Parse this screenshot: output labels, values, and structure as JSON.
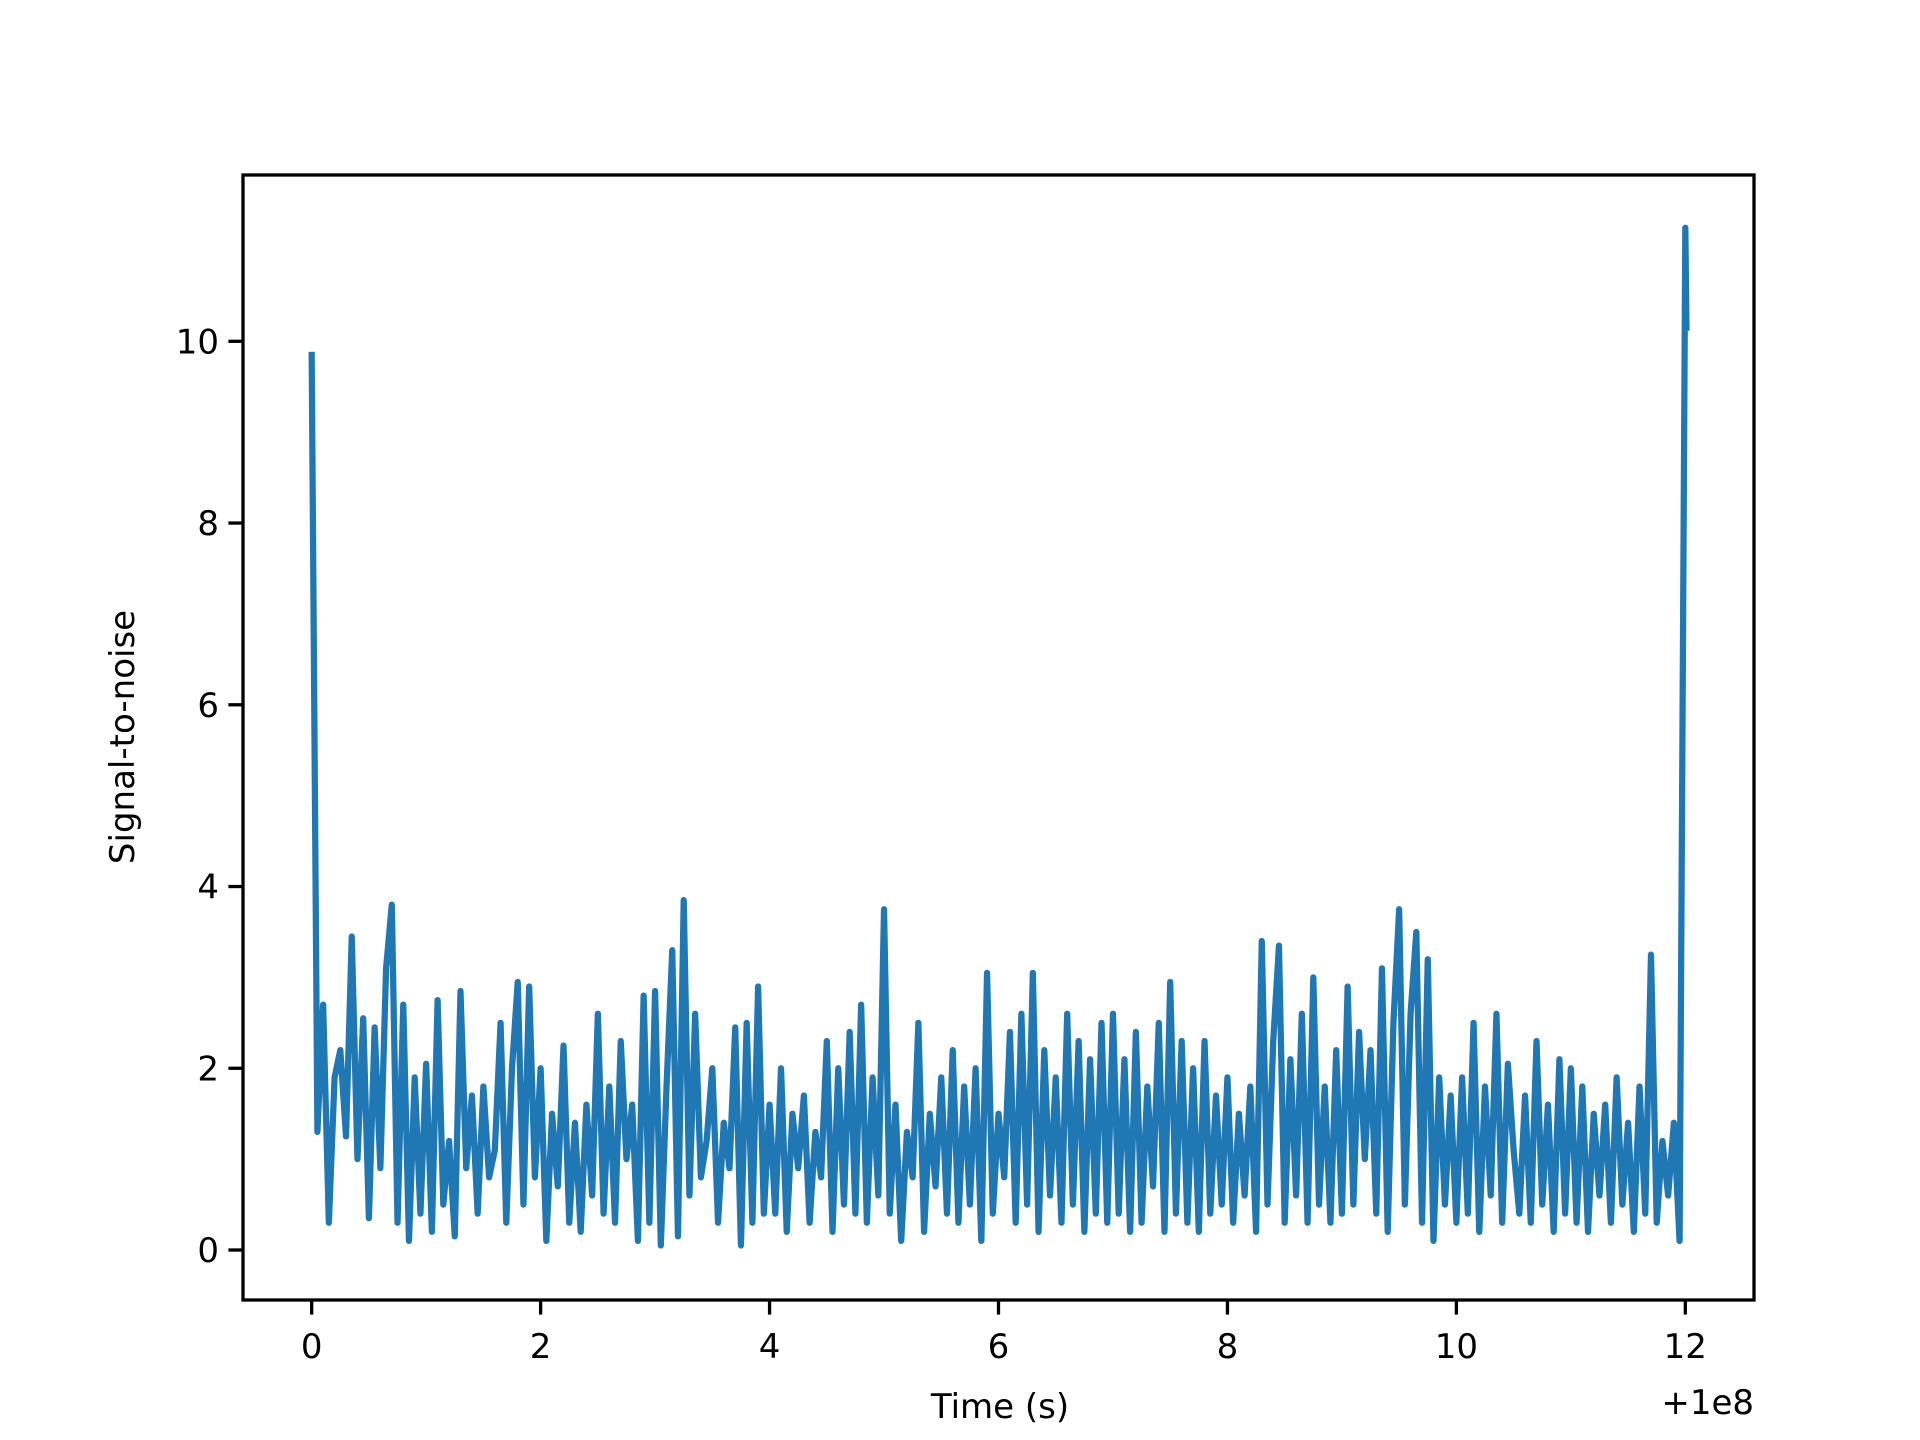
{
  "chart_data": {
    "type": "line",
    "x_label": "Time (s)",
    "y_label": "Signal-to-noise",
    "x_offset_label": "+1e8",
    "xlim": [
      -0.6,
      12.6
    ],
    "xticks": [
      0,
      2,
      4,
      6,
      8,
      10,
      12
    ],
    "ylim": [
      -0.55,
      11.83
    ],
    "yticks": [
      0,
      2,
      4,
      6,
      8,
      10
    ],
    "x": [
      0,
      0.05,
      0.1,
      0.15,
      0.2,
      0.25,
      0.3,
      0.35,
      0.4,
      0.45,
      0.5,
      0.55,
      0.6,
      0.65,
      0.7,
      0.75,
      0.8,
      0.85,
      0.9,
      0.95,
      1,
      1.05,
      1.1,
      1.15,
      1.2,
      1.25,
      1.3,
      1.35,
      1.4,
      1.45,
      1.5,
      1.55,
      1.6,
      1.65,
      1.7,
      1.75,
      1.8,
      1.85,
      1.9,
      1.95,
      2,
      2.05,
      2.1,
      2.15,
      2.2,
      2.25,
      2.3,
      2.35,
      2.4,
      2.45,
      2.5,
      2.55,
      2.6,
      2.65,
      2.7,
      2.75,
      2.8,
      2.85,
      2.9,
      2.95,
      3,
      3.05,
      3.1,
      3.15,
      3.2,
      3.25,
      3.3,
      3.35,
      3.4,
      3.45,
      3.5,
      3.55,
      3.6,
      3.65,
      3.7,
      3.75,
      3.8,
      3.85,
      3.9,
      3.95,
      4,
      4.05,
      4.1,
      4.15,
      4.2,
      4.25,
      4.3,
      4.35,
      4.4,
      4.45,
      4.5,
      4.55,
      4.6,
      4.65,
      4.7,
      4.75,
      4.8,
      4.85,
      4.9,
      4.95,
      5,
      5.05,
      5.1,
      5.15,
      5.2,
      5.25,
      5.3,
      5.35,
      5.4,
      5.45,
      5.5,
      5.55,
      5.6,
      5.65,
      5.7,
      5.75,
      5.8,
      5.85,
      5.9,
      5.95,
      6,
      6.05,
      6.1,
      6.15,
      6.2,
      6.25,
      6.3,
      6.35,
      6.4,
      6.45,
      6.5,
      6.55,
      6.6,
      6.65,
      6.7,
      6.75,
      6.8,
      6.85,
      6.9,
      6.95,
      7,
      7.05,
      7.1,
      7.15,
      7.2,
      7.25,
      7.3,
      7.35,
      7.4,
      7.45,
      7.5,
      7.55,
      7.6,
      7.65,
      7.7,
      7.75,
      7.8,
      7.85,
      7.9,
      7.95,
      8,
      8.05,
      8.1,
      8.15,
      8.2,
      8.25,
      8.3,
      8.35,
      8.4,
      8.45,
      8.5,
      8.55,
      8.6,
      8.65,
      8.7,
      8.75,
      8.8,
      8.85,
      8.9,
      8.95,
      9,
      9.05,
      9.1,
      9.15,
      9.2,
      9.25,
      9.3,
      9.35,
      9.4,
      9.45,
      9.5,
      9.55,
      9.6,
      9.65,
      9.7,
      9.75,
      9.8,
      9.85,
      9.9,
      9.95,
      10,
      10.05,
      10.1,
      10.15,
      10.2,
      10.25,
      10.3,
      10.35,
      10.4,
      10.45,
      10.5,
      10.55,
      10.6,
      10.65,
      10.7,
      10.75,
      10.8,
      10.85,
      10.9,
      10.95,
      11,
      11.05,
      11.1,
      11.15,
      11.2,
      11.25,
      11.3,
      11.35,
      11.4,
      11.45,
      11.5,
      11.55,
      11.6,
      11.65,
      11.7,
      11.75,
      11.8,
      11.85,
      11.9,
      11.95,
      12,
      12.01
    ],
    "series": [
      {
        "color": "#1f77b4",
        "values": [
          9.85,
          1.3,
          2.7,
          0.3,
          1.9,
          2.2,
          1.25,
          3.45,
          1.0,
          2.55,
          0.35,
          2.45,
          0.9,
          3.1,
          3.8,
          0.3,
          2.7,
          0.1,
          1.9,
          0.4,
          2.05,
          0.2,
          2.75,
          0.5,
          1.2,
          0.15,
          2.85,
          0.9,
          1.7,
          0.4,
          1.8,
          0.8,
          1.1,
          2.5,
          0.3,
          2.0,
          2.95,
          0.5,
          2.9,
          0.8,
          2.0,
          0.1,
          1.5,
          0.7,
          2.25,
          0.3,
          1.4,
          0.2,
          1.6,
          0.6,
          2.6,
          0.4,
          1.8,
          0.3,
          2.3,
          1.0,
          1.6,
          0.1,
          2.8,
          0.3,
          2.85,
          0.05,
          1.8,
          3.3,
          0.15,
          3.85,
          0.6,
          2.6,
          0.8,
          1.2,
          2.0,
          0.3,
          1.4,
          0.9,
          2.45,
          0.05,
          2.5,
          0.3,
          2.9,
          0.4,
          1.6,
          0.4,
          2.0,
          0.2,
          1.5,
          0.9,
          1.7,
          0.3,
          1.3,
          0.8,
          2.3,
          0.2,
          2.0,
          0.5,
          2.4,
          0.4,
          2.7,
          0.3,
          1.9,
          0.6,
          3.75,
          0.4,
          1.6,
          0.1,
          1.3,
          0.8,
          2.5,
          0.2,
          1.5,
          0.7,
          1.9,
          0.4,
          2.2,
          0.3,
          1.8,
          0.5,
          2.0,
          0.1,
          3.05,
          0.4,
          1.5,
          0.8,
          2.4,
          0.3,
          2.6,
          0.5,
          3.05,
          0.2,
          2.2,
          0.6,
          1.9,
          0.3,
          2.6,
          0.5,
          2.3,
          0.2,
          2.1,
          0.4,
          2.5,
          0.3,
          2.6,
          0.4,
          2.1,
          0.2,
          2.4,
          0.3,
          1.8,
          0.7,
          2.5,
          0.2,
          2.95,
          0.4,
          2.3,
          0.3,
          2.0,
          0.2,
          2.3,
          0.4,
          1.7,
          0.5,
          1.9,
          0.3,
          1.5,
          0.6,
          1.8,
          0.2,
          3.4,
          0.5,
          2.3,
          3.35,
          0.3,
          2.1,
          0.6,
          2.6,
          0.3,
          3.0,
          0.5,
          1.8,
          0.3,
          2.2,
          0.4,
          2.9,
          0.5,
          2.4,
          1.0,
          2.2,
          0.4,
          3.1,
          0.2,
          2.5,
          3.75,
          0.5,
          2.6,
          3.5,
          0.3,
          3.2,
          0.1,
          1.9,
          0.5,
          1.7,
          0.3,
          1.9,
          0.4,
          2.5,
          0.2,
          1.8,
          0.6,
          2.6,
          0.3,
          2.05,
          1.1,
          0.4,
          1.7,
          0.3,
          2.3,
          0.5,
          1.6,
          0.2,
          2.1,
          0.4,
          2.0,
          0.3,
          1.8,
          0.2,
          1.5,
          0.6,
          1.6,
          0.3,
          1.9,
          0.5,
          1.4,
          0.2,
          1.8,
          0.4,
          3.25,
          0.3,
          1.2,
          0.6,
          1.4,
          0.1,
          11.25,
          10.15
        ]
      }
    ]
  }
}
